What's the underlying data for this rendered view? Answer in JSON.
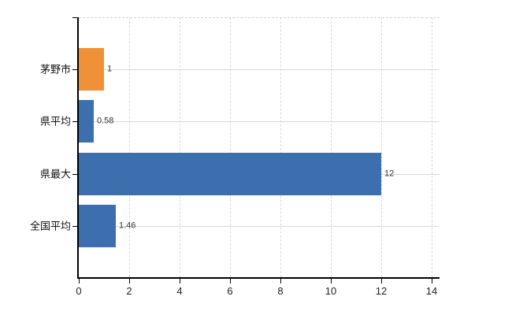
{
  "chart_data": {
    "type": "bar",
    "orientation": "horizontal",
    "title": "",
    "xlabel": "",
    "ylabel": "",
    "categories": [
      "茅野市",
      "県平均",
      "県最大",
      "全国平均"
    ],
    "values": [
      1,
      0.58,
      12,
      1.46
    ],
    "value_labels": [
      "1",
      "0.58",
      "12",
      "1.46"
    ],
    "bar_colors": [
      "#ef9139",
      "#3d6fae",
      "#3d6fae",
      "#3d6fae"
    ],
    "accent_orange": "#ef9139",
    "accent_blue": "#3d6fae",
    "x_ticks": [
      0,
      2,
      4,
      6,
      8,
      10,
      12,
      14
    ],
    "xlim": [
      0,
      14.3
    ],
    "grid": true,
    "legend": "none"
  }
}
